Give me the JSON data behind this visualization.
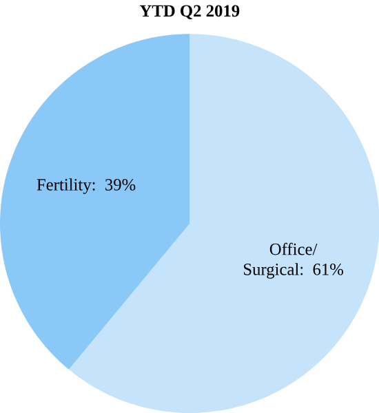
{
  "chart_data": {
    "type": "pie",
    "title": "YTD Q2 2019",
    "categories": [
      "Office/ Surgical: 61%",
      "Fertility: 39%"
    ],
    "values": [
      61,
      39
    ],
    "colors": [
      "#c5e3fb",
      "#8ac8f7"
    ]
  }
}
